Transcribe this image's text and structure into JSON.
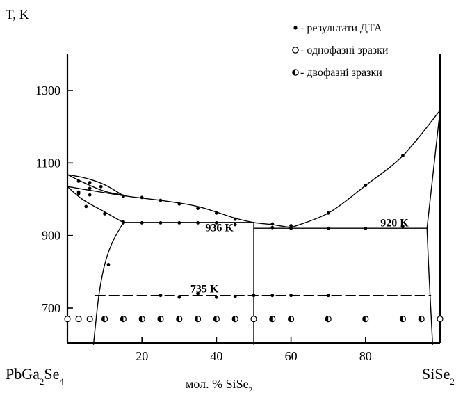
{
  "chart_data": {
    "type": "scatter",
    "title": "",
    "ylabel": "T, K",
    "xlabel": "мол. % SiSe",
    "xlabel_sub": "2",
    "xlim": [
      0,
      100
    ],
    "ylim": [
      600,
      1400
    ],
    "x_ticks": [
      20,
      40,
      60,
      80
    ],
    "y_ticks": [
      700,
      900,
      1100,
      1300
    ],
    "left_component": {
      "base": "PbGa",
      "sub1": "2",
      "mid": "Se",
      "sub2": "4"
    },
    "right_component": {
      "base": "SiSe",
      "sub": "2"
    },
    "legend": {
      "position": "top-right",
      "items": [
        {
          "symbol": "filled",
          "label": "- результати ДТА"
        },
        {
          "symbol": "open",
          "label": "- однофазні зразки"
        },
        {
          "symbol": "half",
          "label": "- двофазні зразки"
        }
      ]
    },
    "annotations": [
      {
        "text": "936 K",
        "x": 37,
        "y": 912
      },
      {
        "text": "920 K",
        "x": 84,
        "y": 925
      },
      {
        "text": "735 K",
        "x": 33,
        "y": 743
      }
    ],
    "lines": {
      "liquidus_left": [
        [
          0,
          1035
        ],
        [
          15,
          1010
        ],
        [
          25,
          997
        ],
        [
          35,
          980
        ],
        [
          45,
          948
        ],
        [
          50,
          936
        ],
        [
          55,
          930
        ],
        [
          60,
          922
        ]
      ],
      "liquidus_right": [
        [
          60,
          922
        ],
        [
          70,
          962
        ],
        [
          80,
          1038
        ],
        [
          90,
          1120
        ],
        [
          100,
          1245
        ]
      ],
      "solidus_high": [
        [
          0,
          1068
        ],
        [
          5,
          1058
        ],
        [
          10,
          1040
        ],
        [
          15,
          1010
        ]
      ],
      "solidus_mid": [
        [
          0,
          1068
        ],
        [
          5,
          1043
        ],
        [
          10,
          1022
        ],
        [
          15,
          1012
        ]
      ],
      "solidus_low": [
        [
          0,
          1035
        ],
        [
          4,
          1000
        ],
        [
          10,
          965
        ],
        [
          15,
          936
        ]
      ],
      "solvus_left": [
        [
          15,
          936
        ],
        [
          12,
          880
        ],
        [
          10,
          820
        ],
        [
          8.5,
          740
        ],
        [
          7.5,
          650
        ],
        [
          7,
          600
        ]
      ],
      "eutectic_936": [
        [
          15,
          936
        ],
        [
          50,
          936
        ]
      ],
      "eutectic_920": [
        [
          50,
          920
        ],
        [
          96.5,
          920
        ]
      ],
      "vertical_50": [
        [
          50,
          600
        ],
        [
          50,
          936
        ]
      ],
      "solvus_right_upper": [
        [
          96.5,
          920
        ],
        [
          100,
          1245
        ]
      ],
      "solvus_right_lower": [
        [
          96.5,
          920
        ],
        [
          97,
          800
        ],
        [
          97.5,
          700
        ],
        [
          98,
          600
        ]
      ],
      "dashed_735": [
        [
          7.5,
          735
        ],
        [
          97.5,
          735
        ]
      ]
    },
    "series": [
      {
        "name": "- результати ДТА",
        "symbol": "filled",
        "points": [
          [
            3,
            1050
          ],
          [
            6,
            1046
          ],
          [
            9,
            1035
          ],
          [
            6,
            1030
          ],
          [
            3,
            1016
          ],
          [
            6,
            1012
          ],
          [
            3,
            1020
          ],
          [
            5,
            980
          ],
          [
            10,
            960
          ],
          [
            15,
            938
          ],
          [
            15,
            1008
          ],
          [
            20,
            1005
          ],
          [
            25,
            997
          ],
          [
            30,
            987
          ],
          [
            35,
            975
          ],
          [
            40,
            962
          ],
          [
            45,
            945
          ],
          [
            15,
            935
          ],
          [
            20,
            935
          ],
          [
            25,
            935
          ],
          [
            30,
            935
          ],
          [
            35,
            935
          ],
          [
            40,
            935
          ],
          [
            45,
            930
          ],
          [
            55,
            932
          ],
          [
            55,
            922
          ],
          [
            60,
            927
          ],
          [
            60,
            920
          ],
          [
            70,
            920
          ],
          [
            80,
            920
          ],
          [
            90,
            925
          ],
          [
            70,
            962
          ],
          [
            80,
            1038
          ],
          [
            90,
            1120
          ],
          [
            11,
            820
          ],
          [
            25,
            735
          ],
          [
            30,
            730
          ],
          [
            35,
            740
          ],
          [
            40,
            730
          ],
          [
            45,
            732
          ],
          [
            50,
            735
          ],
          [
            55,
            735
          ],
          [
            60,
            735
          ],
          [
            70,
            735
          ]
        ]
      },
      {
        "name": "- однофазні зразки",
        "symbol": "open",
        "points": [
          [
            0,
            670
          ],
          [
            3,
            670
          ],
          [
            6,
            670
          ],
          [
            50,
            670
          ],
          [
            100,
            670
          ]
        ]
      },
      {
        "name": "- двофазні зразки",
        "symbol": "half",
        "points": [
          [
            10,
            670
          ],
          [
            15,
            670
          ],
          [
            20,
            670
          ],
          [
            25,
            670
          ],
          [
            30,
            670
          ],
          [
            35,
            670
          ],
          [
            40,
            670
          ],
          [
            45,
            670
          ],
          [
            55,
            670
          ],
          [
            60,
            670
          ],
          [
            70,
            670
          ],
          [
            80,
            670
          ],
          [
            90,
            670
          ],
          [
            95,
            670
          ]
        ]
      }
    ]
  }
}
